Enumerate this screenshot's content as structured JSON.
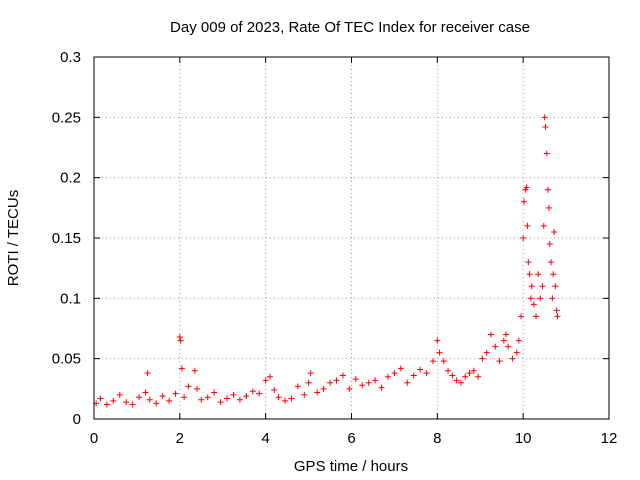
{
  "chart_data": {
    "type": "scatter",
    "title": "Day 009 of 2023, Rate Of TEC Index for receiver case",
    "xlabel": "GPS time / hours",
    "ylabel": "ROTI / TECUs",
    "xlim": [
      0,
      12
    ],
    "ylim": [
      0,
      0.3
    ],
    "xticks": [
      "0",
      "2",
      "4",
      "6",
      "8",
      "10",
      "12"
    ],
    "yticks": [
      "0",
      "0.05",
      "0.1",
      "0.15",
      "0.2",
      "0.25",
      "0.3"
    ],
    "grid": true,
    "marker": "+",
    "color": "#ff0000",
    "series": [
      {
        "x": [
          0.05,
          0.15,
          0.3,
          0.45,
          0.6,
          0.75,
          0.9,
          1.05,
          1.2,
          1.25,
          1.3,
          1.45,
          1.6,
          1.75,
          1.9,
          2.0,
          2.02,
          2.05,
          2.1,
          2.2,
          2.35,
          2.4,
          2.5,
          2.65,
          2.8,
          2.95,
          3.1,
          3.25,
          3.4,
          3.55,
          3.7,
          3.85,
          4.0,
          4.1,
          4.2,
          4.3,
          4.45,
          4.6,
          4.75,
          4.9,
          5.0,
          5.05,
          5.2,
          5.35,
          5.5,
          5.65,
          5.8,
          5.95,
          6.1,
          6.25,
          6.4,
          6.55,
          6.7,
          6.85,
          7.0,
          7.15,
          7.3,
          7.45,
          7.6,
          7.75,
          7.9,
          8.0,
          8.05,
          8.15,
          8.25,
          8.35,
          8.45,
          8.55,
          8.65,
          8.75,
          8.85,
          8.95,
          9.05,
          9.15,
          9.25,
          9.35,
          9.45,
          9.55,
          9.6,
          9.65,
          9.75,
          9.85,
          9.9,
          9.95,
          10.0,
          10.02,
          10.05,
          10.08,
          10.1,
          10.12,
          10.15,
          10.18,
          10.2,
          10.25,
          10.3,
          10.35,
          10.4,
          10.45,
          10.48,
          10.5,
          10.52,
          10.55,
          10.58,
          10.6,
          10.62,
          10.65,
          10.68,
          10.7,
          10.72,
          10.75,
          10.78,
          10.8
        ],
        "y": [
          0.013,
          0.017,
          0.012,
          0.015,
          0.02,
          0.014,
          0.012,
          0.018,
          0.022,
          0.038,
          0.016,
          0.013,
          0.019,
          0.015,
          0.021,
          0.068,
          0.065,
          0.042,
          0.018,
          0.027,
          0.04,
          0.025,
          0.016,
          0.018,
          0.022,
          0.014,
          0.017,
          0.02,
          0.016,
          0.019,
          0.023,
          0.021,
          0.032,
          0.035,
          0.024,
          0.018,
          0.015,
          0.017,
          0.027,
          0.02,
          0.03,
          0.038,
          0.022,
          0.025,
          0.03,
          0.032,
          0.036,
          0.025,
          0.033,
          0.028,
          0.03,
          0.032,
          0.026,
          0.035,
          0.038,
          0.042,
          0.03,
          0.036,
          0.041,
          0.038,
          0.048,
          0.065,
          0.055,
          0.048,
          0.04,
          0.036,
          0.032,
          0.03,
          0.035,
          0.038,
          0.04,
          0.035,
          0.05,
          0.055,
          0.07,
          0.06,
          0.048,
          0.065,
          0.07,
          0.06,
          0.05,
          0.055,
          0.065,
          0.085,
          0.15,
          0.18,
          0.19,
          0.192,
          0.16,
          0.13,
          0.12,
          0.1,
          0.11,
          0.095,
          0.085,
          0.12,
          0.1,
          0.11,
          0.16,
          0.25,
          0.242,
          0.22,
          0.19,
          0.175,
          0.145,
          0.13,
          0.1,
          0.12,
          0.155,
          0.11,
          0.09,
          0.085
        ]
      }
    ]
  }
}
